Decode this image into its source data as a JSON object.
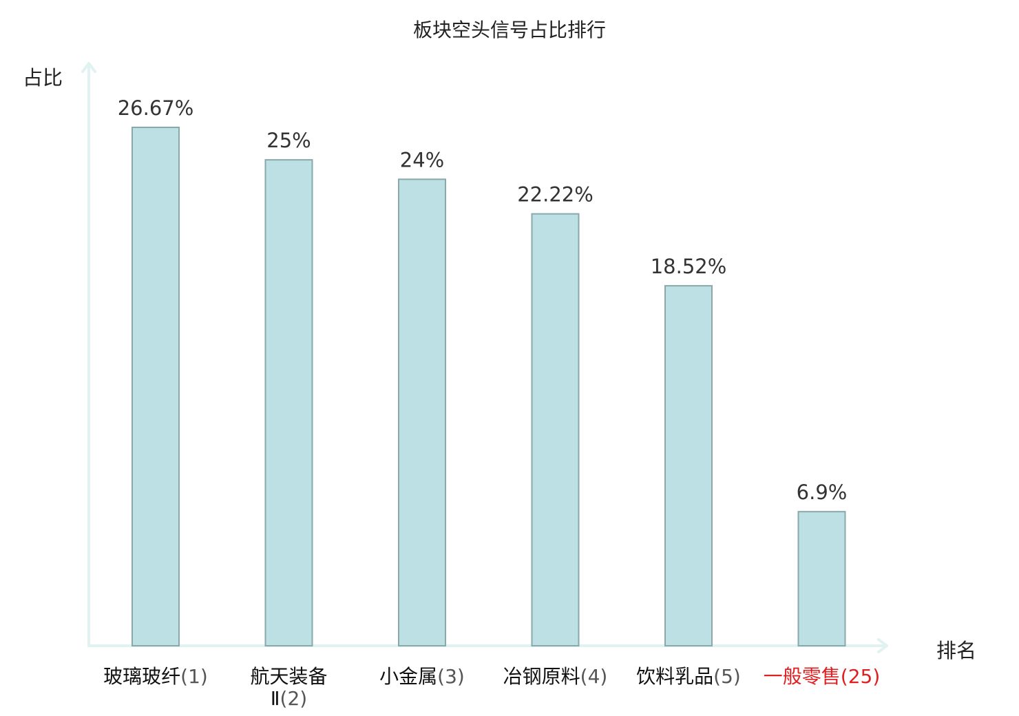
{
  "chart_data": {
    "type": "bar",
    "title": "板块空头信号占比排行",
    "ylabel": "占比",
    "xlabel": "排名",
    "ylim": [
      0,
      30
    ],
    "grid": false,
    "categories": [
      {
        "name": "玻璃玻纤",
        "rank": "(1)",
        "value": 26.67,
        "value_label": "26.67%",
        "highlight": false
      },
      {
        "name": "航天装备",
        "name_line2": "Ⅱ",
        "rank": "(2)",
        "value": 25,
        "value_label": "25%",
        "highlight": false
      },
      {
        "name": "小金属",
        "rank": "(3)",
        "value": 24,
        "value_label": "24%",
        "highlight": false
      },
      {
        "name": "冶钢原料",
        "rank": "(4)",
        "value": 22.22,
        "value_label": "22.22%",
        "highlight": false
      },
      {
        "name": "饮料乳品",
        "rank": "(5)",
        "value": 18.52,
        "value_label": "18.52%",
        "highlight": false
      },
      {
        "name": "一般零售",
        "rank": "(25)",
        "value": 6.9,
        "value_label": "6.9%",
        "highlight": true
      }
    ],
    "colors": {
      "bar_fill": "#bce0e3",
      "bar_stroke": "#89a8aa",
      "axis": "#e0f2f1",
      "highlight": "#e02020"
    }
  }
}
